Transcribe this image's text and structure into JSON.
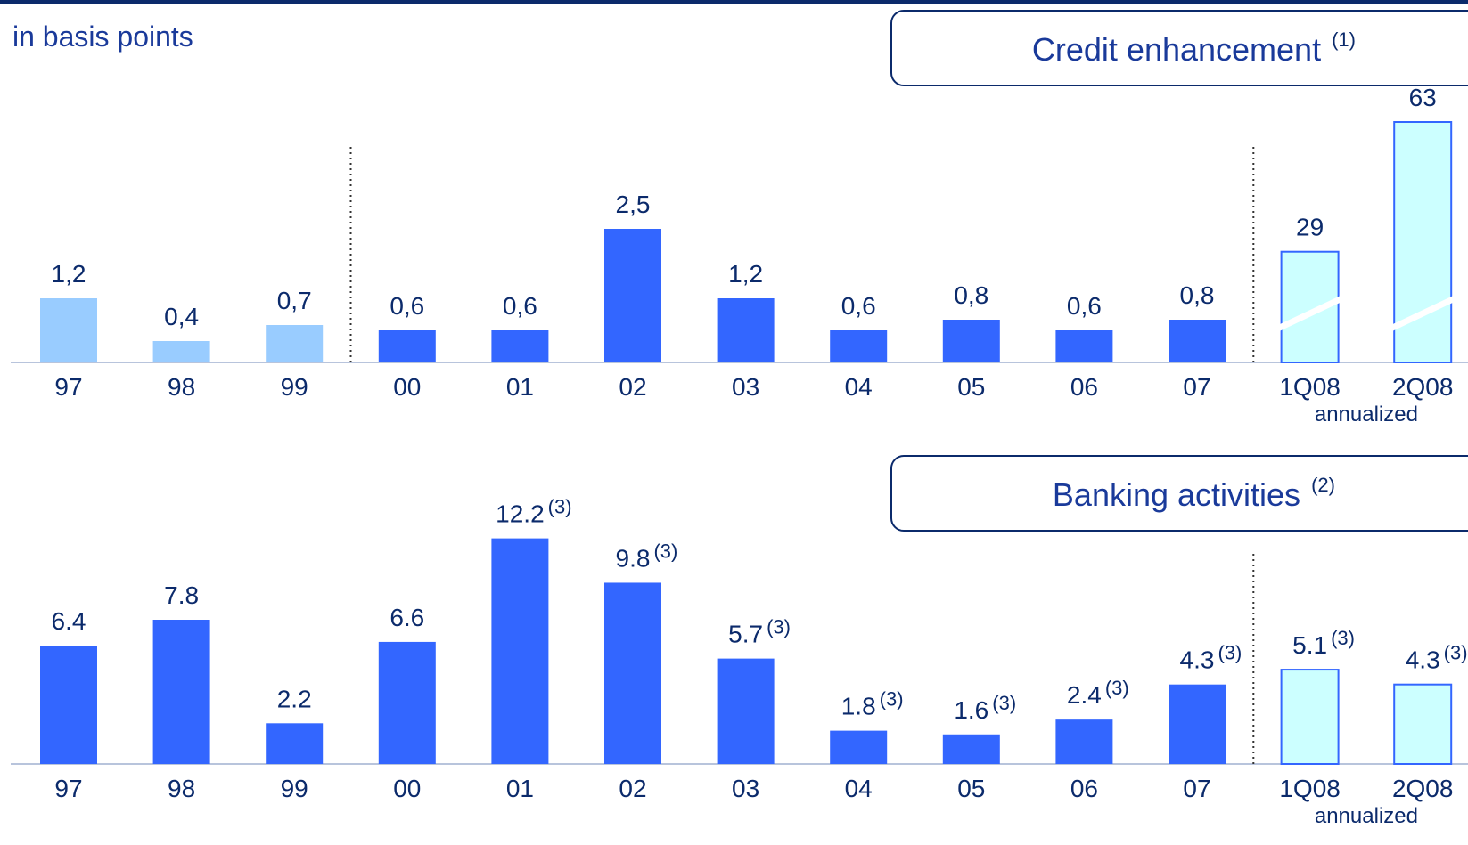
{
  "chart_data": [
    {
      "type": "bar",
      "title": "Credit enhancement",
      "title_note": "(1)",
      "subtitle": "in basis points",
      "categories": [
        "97",
        "98",
        "99",
        "00",
        "01",
        "02",
        "03",
        "04",
        "05",
        "06",
        "07",
        "1Q08",
        "2Q08"
      ],
      "ylim": [
        0,
        5
      ],
      "y2lim": [
        0,
        70
      ],
      "annotation": "annualized",
      "series": [
        {
          "color": "#99ccff",
          "values": [
            1.2,
            0.4,
            0.7,
            null,
            null,
            null,
            null,
            null,
            null,
            null,
            null,
            null,
            null
          ],
          "value_labels": [
            "1,2",
            "0,4",
            "0,7",
            null,
            null,
            null,
            null,
            null,
            null,
            null,
            null,
            null,
            null
          ]
        },
        {
          "color": "#3366ff",
          "values": [
            null,
            null,
            null,
            0.6,
            0.6,
            2.5,
            1.2,
            0.6,
            0.8,
            0.6,
            0.8,
            null,
            null
          ],
          "value_labels": [
            null,
            null,
            null,
            "0,6",
            "0,6",
            "2,5",
            "1,2",
            "0,6",
            "0,8",
            "0,6",
            "0,8",
            null,
            null
          ]
        },
        {
          "color": "#ccffff",
          "axis": "y2",
          "broken": true,
          "values": [
            null,
            null,
            null,
            null,
            null,
            null,
            null,
            null,
            null,
            null,
            null,
            29,
            63
          ]
        }
      ]
    },
    {
      "type": "bar",
      "title": "Banking activities",
      "title_note": "(2)",
      "categories": [
        "97",
        "98",
        "99",
        "00",
        "01",
        "02",
        "03",
        "04",
        "05",
        "06",
        "07",
        "1Q08",
        "2Q08"
      ],
      "ylim": [
        0,
        13
      ],
      "annotation": "annualized",
      "series": [
        {
          "color": "#3366ff",
          "values": [
            6.4,
            7.8,
            2.2,
            6.6,
            12.2,
            9.8,
            5.7,
            1.8,
            1.6,
            2.4,
            4.3,
            null,
            null
          ],
          "notes": [
            null,
            null,
            null,
            null,
            "(3)",
            "(3)",
            "(3)",
            "(3)",
            "(3)",
            "(3)",
            "(3)",
            null,
            null
          ]
        },
        {
          "color": "#ccffff",
          "values": [
            null,
            null,
            null,
            null,
            null,
            null,
            null,
            null,
            null,
            null,
            null,
            5.1,
            4.3
          ],
          "notes": [
            null,
            null,
            null,
            null,
            null,
            null,
            null,
            null,
            null,
            null,
            null,
            "(3)",
            "(3)"
          ]
        }
      ]
    }
  ]
}
